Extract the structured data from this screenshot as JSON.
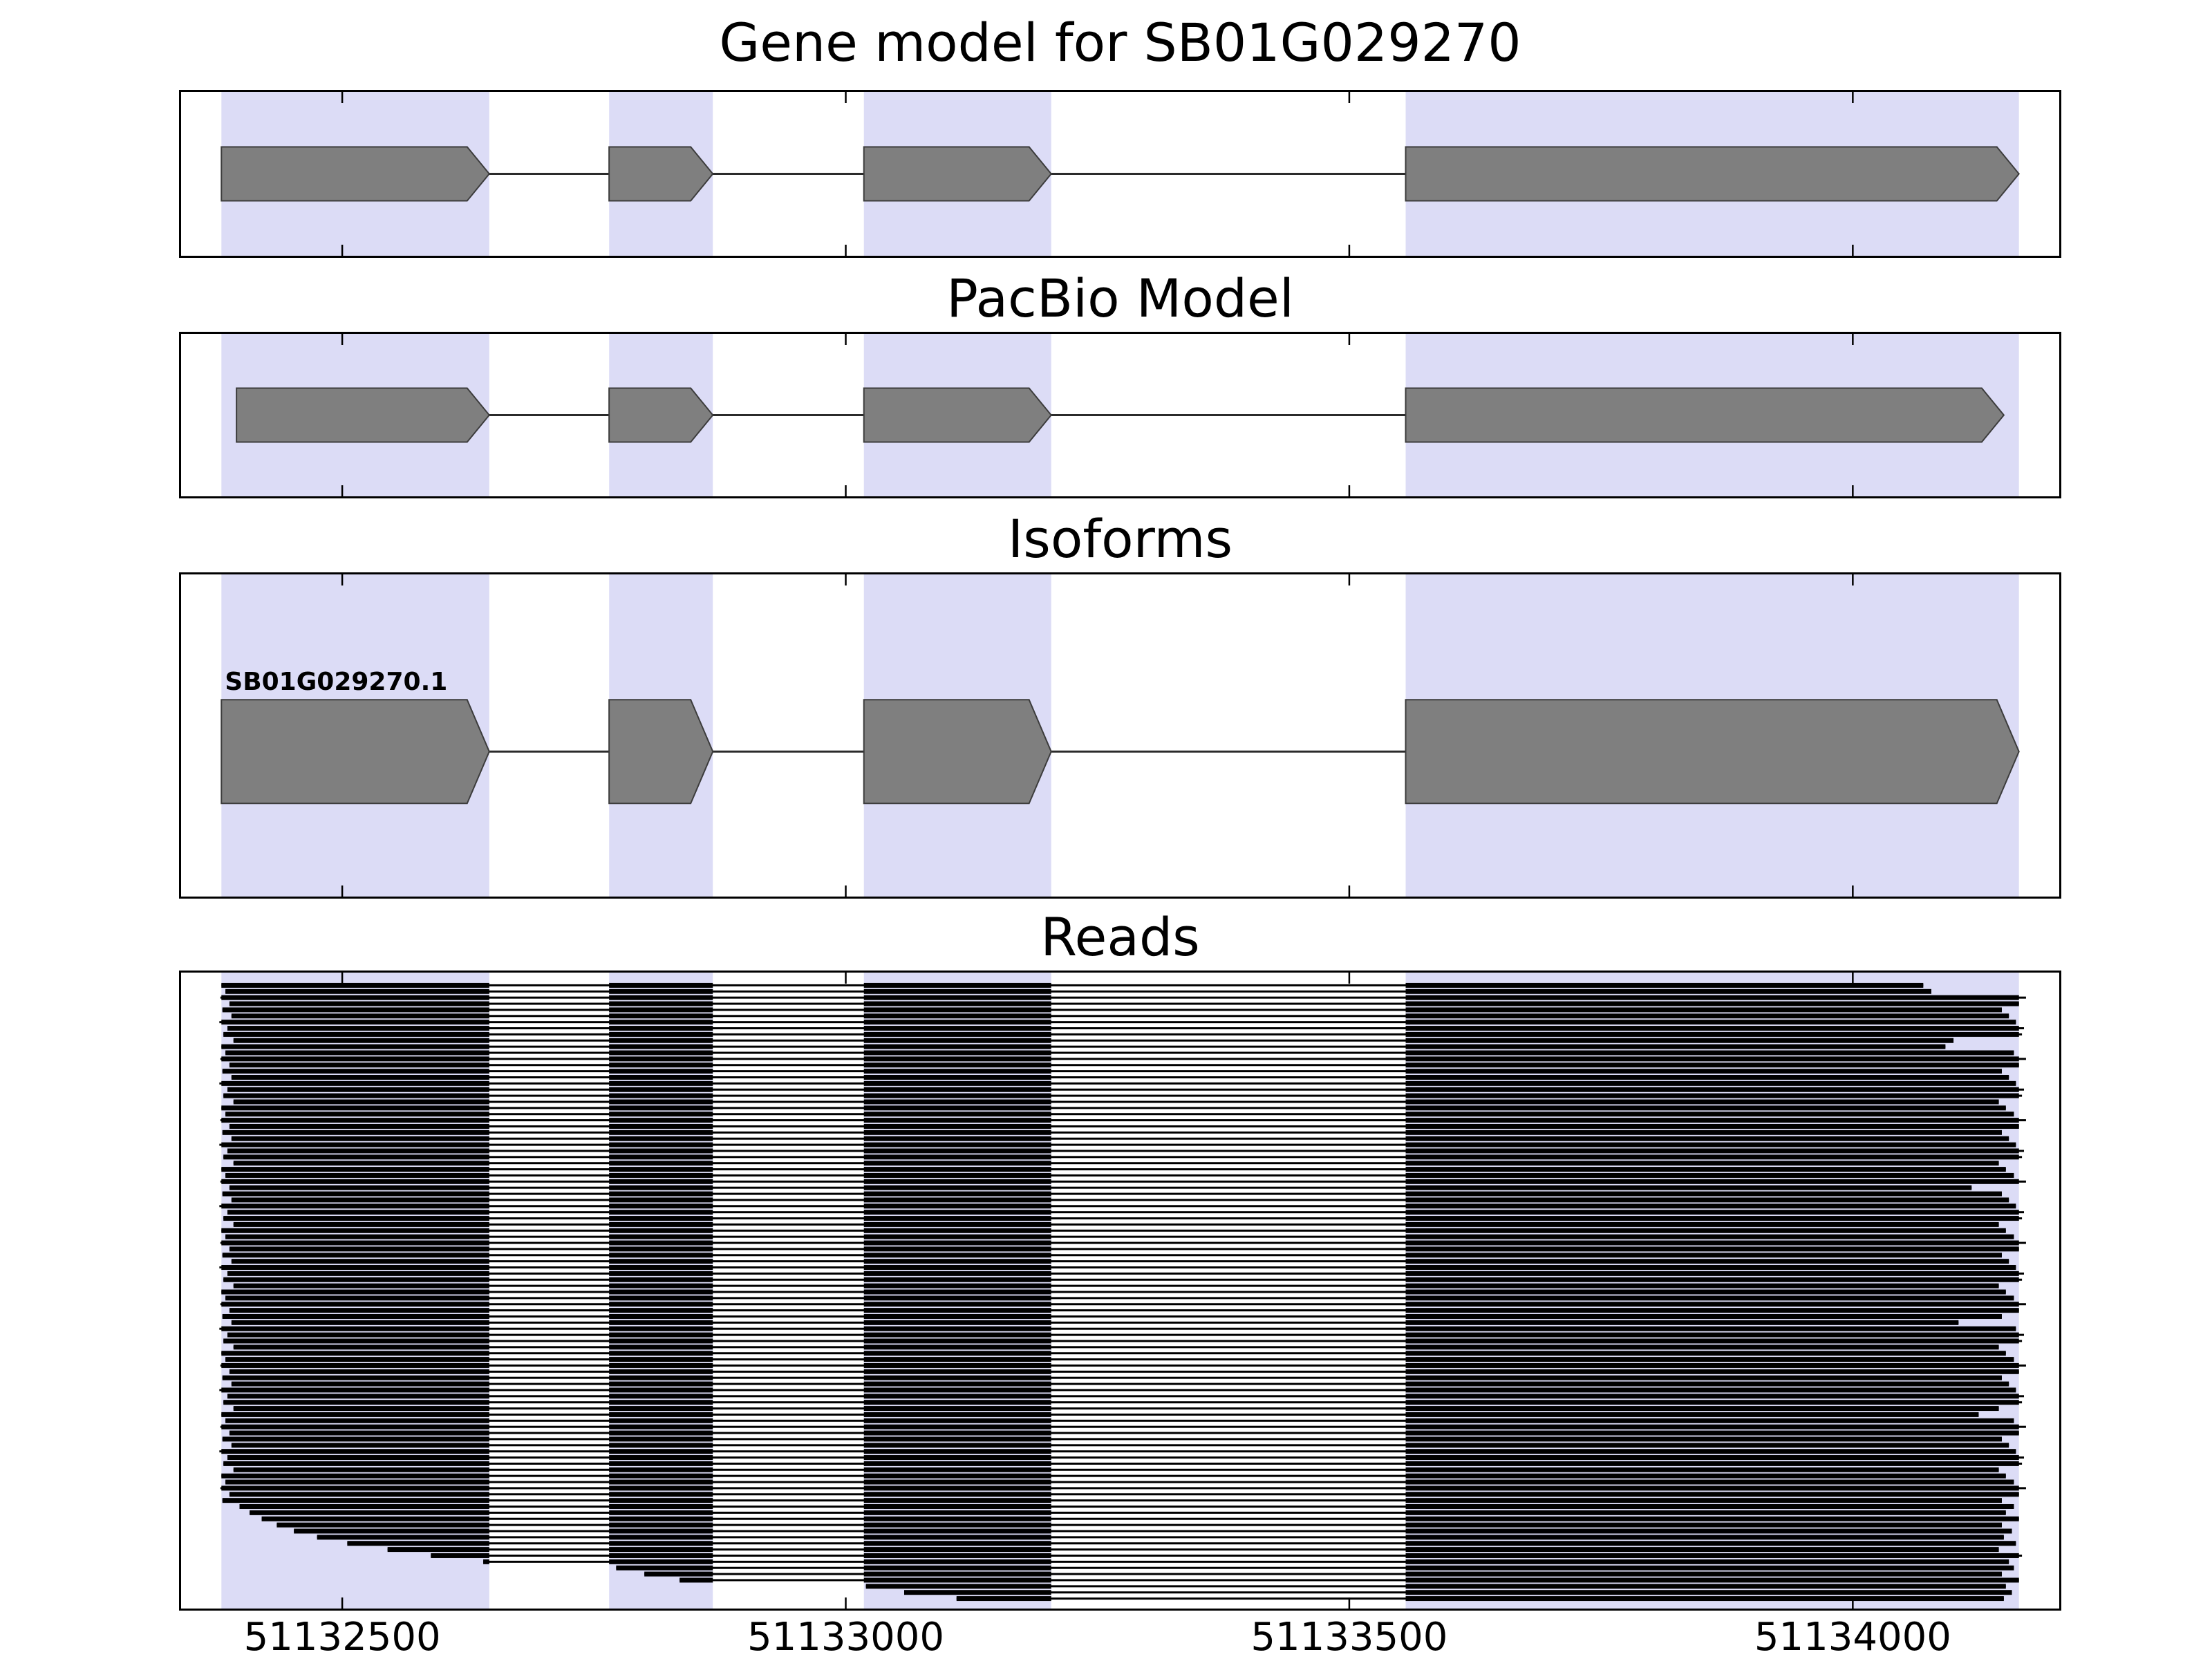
{
  "figure": {
    "background": "#ffffff",
    "description": "Gene model / PacBio model / isoforms / reads genome browser tracks for gene SB01G029270"
  },
  "chart_data": {
    "type": "genome-tracks",
    "xlim": [
      51132340,
      51134205
    ],
    "axis_ticks": [
      51132500,
      51133000,
      51133500,
      51134000
    ],
    "axis_tick_labels": [
      "51132500",
      "51133000",
      "51133500",
      "51134000"
    ],
    "exon_highlight_regions": [
      [
        51132380,
        51132646
      ],
      [
        51132765,
        51132868
      ],
      [
        51133018,
        51133204
      ],
      [
        51133556,
        51134165
      ]
    ],
    "colors": {
      "highlight": "#dcdcf6",
      "exon": "#7f7f7f",
      "exon_edge": "#3c3c3c",
      "intron": "#2b2b2b",
      "read": "#000000"
    },
    "tracks": {
      "gene_model": {
        "title": "Gene model for SB01G029270",
        "strand": "+",
        "exons": [
          [
            51132380,
            51132646
          ],
          [
            51132765,
            51132868
          ],
          [
            51133018,
            51133204
          ],
          [
            51133556,
            51134165
          ]
        ]
      },
      "pacbio": {
        "title": "PacBio Model",
        "strand": "+",
        "exons": [
          [
            51132395,
            51132646
          ],
          [
            51132765,
            51132868
          ],
          [
            51133018,
            51133204
          ],
          [
            51133556,
            51134150
          ]
        ]
      },
      "isoforms": {
        "title": "Isoforms",
        "items": [
          {
            "name": "SB01G029270.1",
            "strand": "+",
            "exons": [
              [
                51132380,
                51132646
              ],
              [
                51132765,
                51132868
              ],
              [
                51133018,
                51133204
              ],
              [
                51133556,
                51134165
              ]
            ]
          }
        ]
      },
      "reads": {
        "title": "Reads",
        "reads": [
          [
            51132380,
            51134070
          ],
          [
            51132384,
            51134078
          ],
          [
            51132379,
            51134172
          ],
          [
            51132388,
            51134165
          ],
          [
            51132381,
            51134148
          ],
          [
            51132390,
            51134155
          ],
          [
            51132378,
            51134162
          ],
          [
            51132386,
            51134170
          ],
          [
            51132382,
            51134168
          ],
          [
            51132392,
            51134100
          ],
          [
            51132380,
            51134092
          ],
          [
            51132384,
            51134160
          ],
          [
            51132379,
            51134172
          ],
          [
            51132388,
            51134165
          ],
          [
            51132381,
            51134148
          ],
          [
            51132390,
            51134155
          ],
          [
            51132378,
            51134162
          ],
          [
            51132386,
            51134170
          ],
          [
            51132382,
            51134168
          ],
          [
            51132392,
            51134145
          ],
          [
            51132380,
            51134152
          ],
          [
            51132384,
            51134160
          ],
          [
            51132379,
            51134172
          ],
          [
            51132388,
            51134165
          ],
          [
            51132381,
            51134148
          ],
          [
            51132390,
            51134155
          ],
          [
            51132378,
            51134162
          ],
          [
            51132386,
            51134170
          ],
          [
            51132382,
            51134168
          ],
          [
            51132392,
            51134145
          ],
          [
            51132380,
            51134152
          ],
          [
            51132384,
            51134160
          ],
          [
            51132379,
            51134172
          ],
          [
            51132388,
            51134118
          ],
          [
            51132381,
            51134148
          ],
          [
            51132390,
            51134155
          ],
          [
            51132378,
            51134162
          ],
          [
            51132386,
            51134170
          ],
          [
            51132382,
            51134168
          ],
          [
            51132392,
            51134145
          ],
          [
            51132380,
            51134152
          ],
          [
            51132384,
            51134160
          ],
          [
            51132379,
            51134172
          ],
          [
            51132388,
            51134165
          ],
          [
            51132381,
            51134148
          ],
          [
            51132390,
            51134155
          ],
          [
            51132378,
            51134162
          ],
          [
            51132386,
            51134170
          ],
          [
            51132382,
            51134168
          ],
          [
            51132392,
            51134145
          ],
          [
            51132380,
            51134152
          ],
          [
            51132384,
            51134160
          ],
          [
            51132379,
            51134172
          ],
          [
            51132388,
            51134165
          ],
          [
            51132381,
            51134148
          ],
          [
            51132390,
            51134105
          ],
          [
            51132378,
            51134162
          ],
          [
            51132386,
            51134170
          ],
          [
            51132382,
            51134168
          ],
          [
            51132392,
            51134145
          ],
          [
            51132380,
            51134152
          ],
          [
            51132384,
            51134160
          ],
          [
            51132379,
            51134172
          ],
          [
            51132388,
            51134165
          ],
          [
            51132381,
            51134148
          ],
          [
            51132390,
            51134155
          ],
          [
            51132378,
            51134162
          ],
          [
            51132386,
            51134170
          ],
          [
            51132382,
            51134168
          ],
          [
            51132392,
            51134145
          ],
          [
            51132380,
            51134125
          ],
          [
            51132384,
            51134160
          ],
          [
            51132379,
            51134172
          ],
          [
            51132388,
            51134165
          ],
          [
            51132381,
            51134148
          ],
          [
            51132390,
            51134155
          ],
          [
            51132378,
            51134162
          ],
          [
            51132386,
            51134170
          ],
          [
            51132382,
            51134168
          ],
          [
            51132392,
            51134145
          ],
          [
            51132380,
            51134152
          ],
          [
            51132384,
            51134160
          ],
          [
            51132379,
            51134172
          ],
          [
            51132388,
            51134165
          ],
          [
            51132381,
            51134148
          ],
          [
            51132398,
            51134160
          ],
          [
            51132408,
            51134152
          ],
          [
            51132420,
            51134165
          ],
          [
            51132435,
            51134148
          ],
          [
            51132452,
            51134158
          ],
          [
            51132475,
            51134150
          ],
          [
            51132505,
            51134162
          ],
          [
            51132545,
            51134145
          ],
          [
            51132588,
            51134168
          ],
          [
            51132640,
            51134155
          ],
          [
            51132772,
            51134160
          ],
          [
            51132800,
            51134148
          ],
          [
            51132835,
            51134165
          ],
          [
            51133020,
            51134152
          ],
          [
            51133058,
            51134158
          ],
          [
            51133110,
            51134150
          ]
        ]
      }
    }
  }
}
